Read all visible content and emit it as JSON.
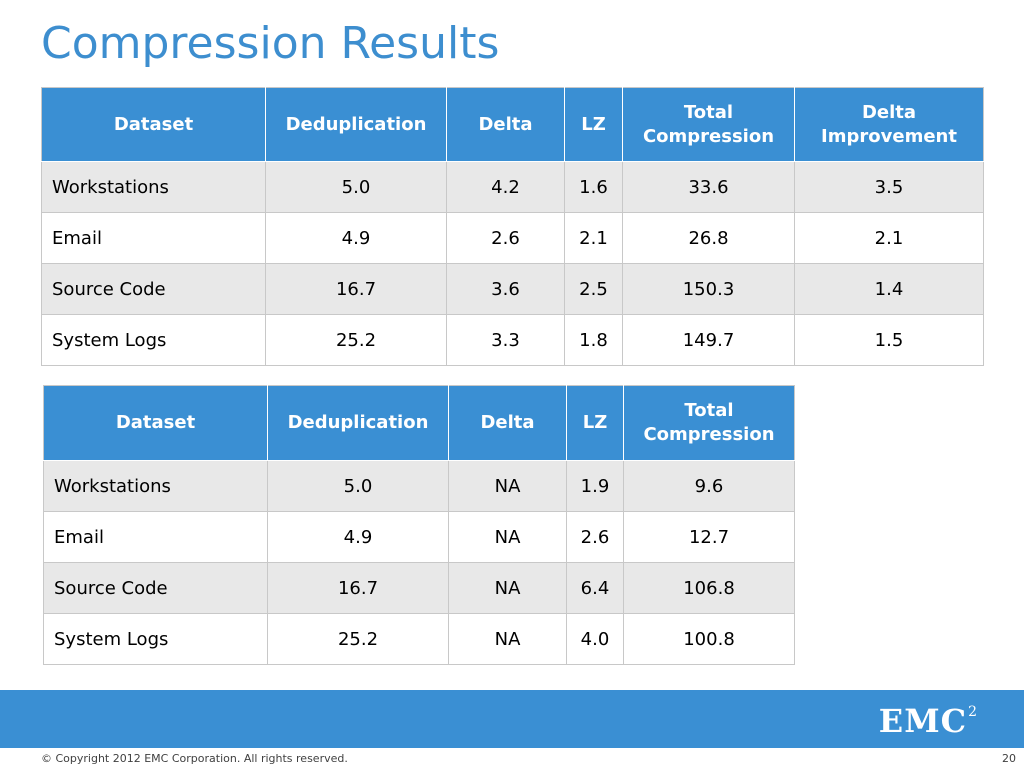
{
  "title": "Compression Results",
  "table1": {
    "headers": [
      "Dataset",
      "Deduplication",
      "Delta",
      "LZ",
      "Total Compression",
      "Delta Improvement"
    ],
    "rows": [
      [
        "Workstations",
        "5.0",
        "4.2",
        "1.6",
        "33.6",
        "3.5"
      ],
      [
        "Email",
        "4.9",
        "2.6",
        "2.1",
        "26.8",
        "2.1"
      ],
      [
        "Source Code",
        "16.7",
        "3.6",
        "2.5",
        "150.3",
        "1.4"
      ],
      [
        "System Logs",
        "25.2",
        "3.3",
        "1.8",
        "149.7",
        "1.5"
      ]
    ]
  },
  "table2": {
    "headers": [
      "Dataset",
      "Deduplication",
      "Delta",
      "LZ",
      "Total Compression"
    ],
    "rows": [
      [
        "Workstations",
        "5.0",
        "NA",
        "1.9",
        "9.6"
      ],
      [
        "Email",
        "4.9",
        "NA",
        "2.6",
        "12.7"
      ],
      [
        "Source Code",
        "16.7",
        "NA",
        "6.4",
        "106.8"
      ],
      [
        "System Logs",
        "25.2",
        "NA",
        "4.0",
        "100.8"
      ]
    ]
  },
  "footer": {
    "logo": "EMC",
    "logo_sup": "2",
    "copyright": "© Copyright 2012 EMC Corporation. All rights reserved.",
    "page_number": "20"
  },
  "colors": {
    "title": "#3d8ecf",
    "header_bg": "#3a8fd3",
    "row_shade": "#e8e8e8"
  }
}
